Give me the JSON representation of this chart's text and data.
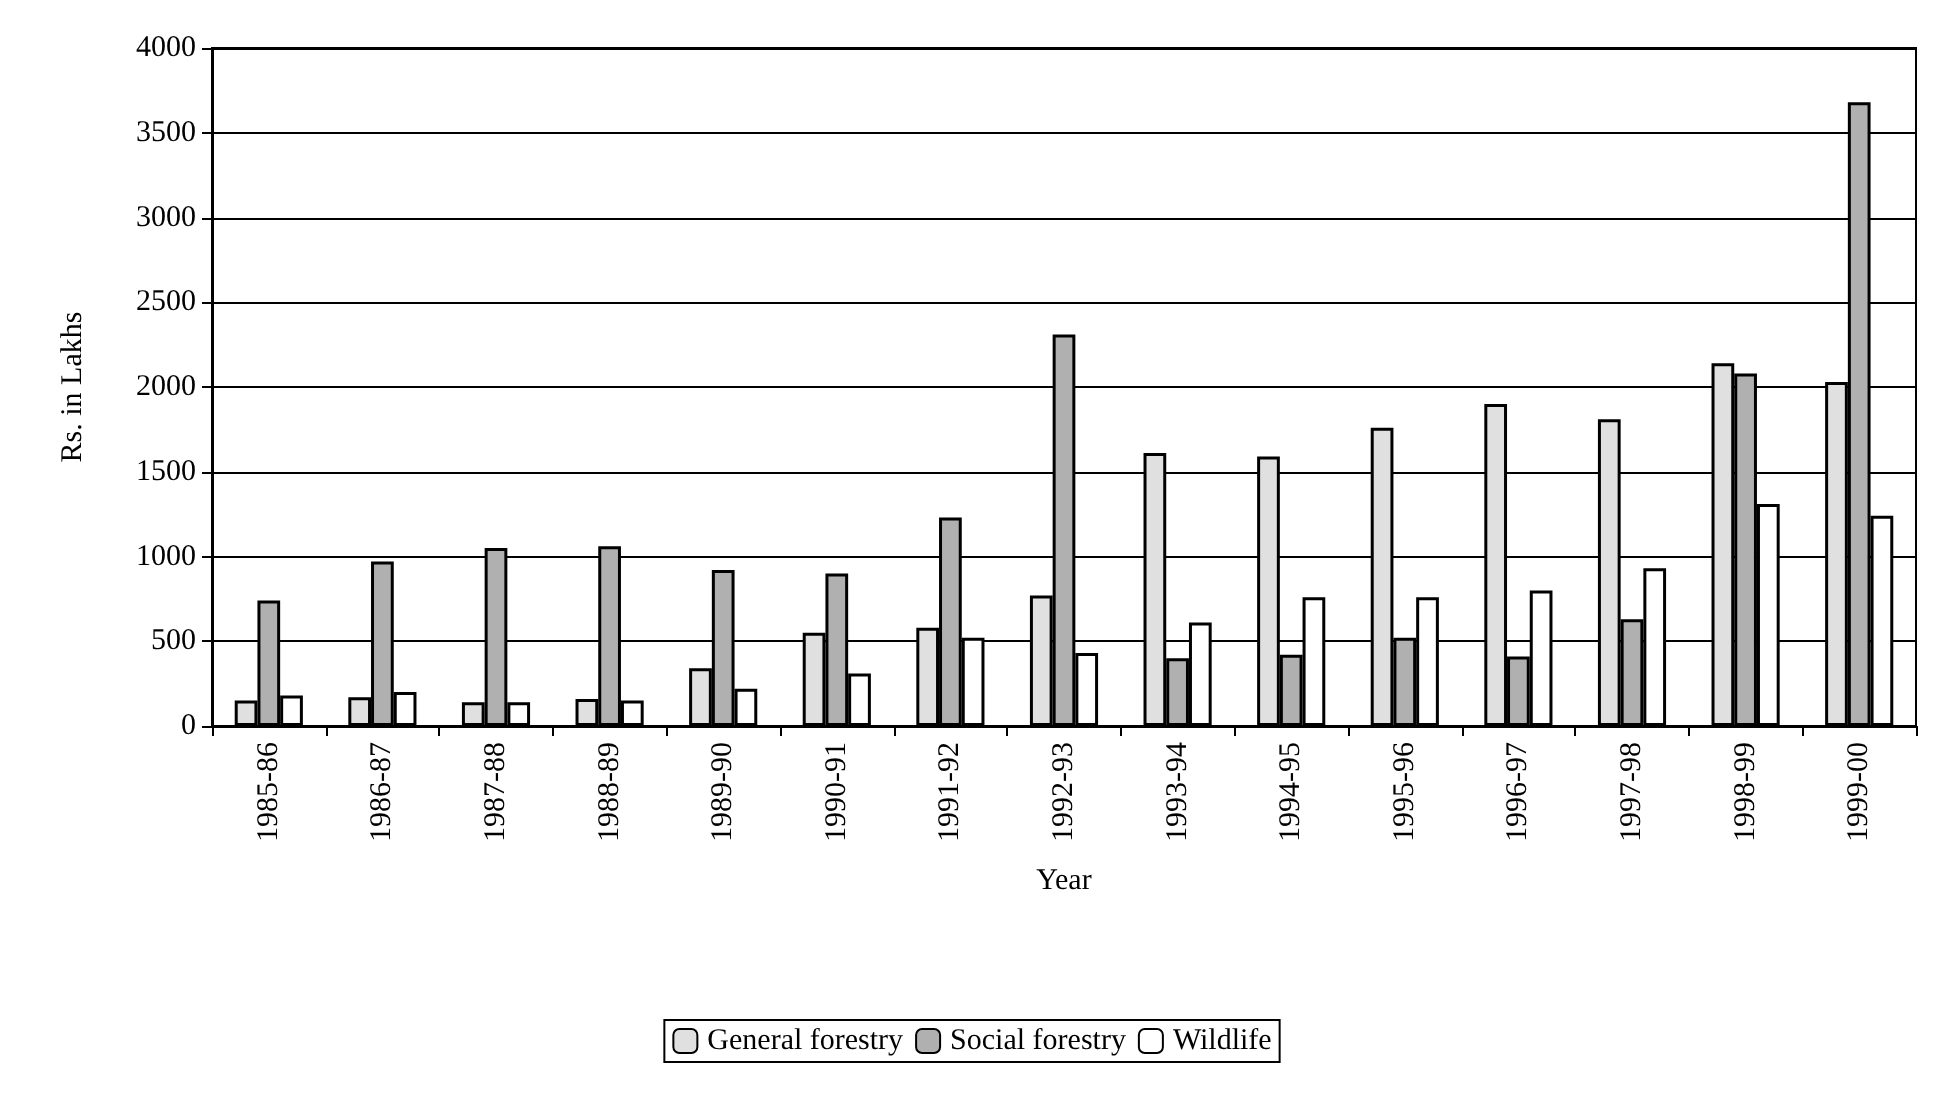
{
  "chart_data": {
    "type": "bar",
    "xlabel": "Year",
    "ylabel": "Rs. in Lakhs",
    "categories": [
      "1985-86",
      "1986-87",
      "1987-88",
      "1988-89",
      "1989-90",
      "1990-91",
      "1991-92",
      "1992-93",
      "1993-94",
      "1994-95",
      "1995-96",
      "1996-97",
      "1997-98",
      "1998-99",
      "1999-00"
    ],
    "series": [
      {
        "name": "General forestry",
        "color": "#e0e0e0",
        "values": [
          150,
          170,
          140,
          160,
          340,
          550,
          580,
          770,
          1610,
          1590,
          1760,
          1900,
          1810,
          2140,
          2030
        ]
      },
      {
        "name": "Social forestry",
        "color": "#b0b0b0",
        "values": [
          740,
          970,
          1050,
          1060,
          920,
          900,
          1230,
          2310,
          400,
          420,
          520,
          410,
          630,
          2080,
          3680
        ]
      },
      {
        "name": "Wildlife",
        "color": "#ffffff",
        "values": [
          180,
          200,
          140,
          150,
          220,
          310,
          520,
          430,
          610,
          760,
          760,
          800,
          930,
          1310,
          1240
        ]
      }
    ],
    "ylim": [
      0,
      4000
    ],
    "yticks": [
      0,
      500,
      1000,
      1500,
      2000,
      2500,
      3000,
      3500,
      4000
    ],
    "grid": "y",
    "legend": "bottom"
  }
}
